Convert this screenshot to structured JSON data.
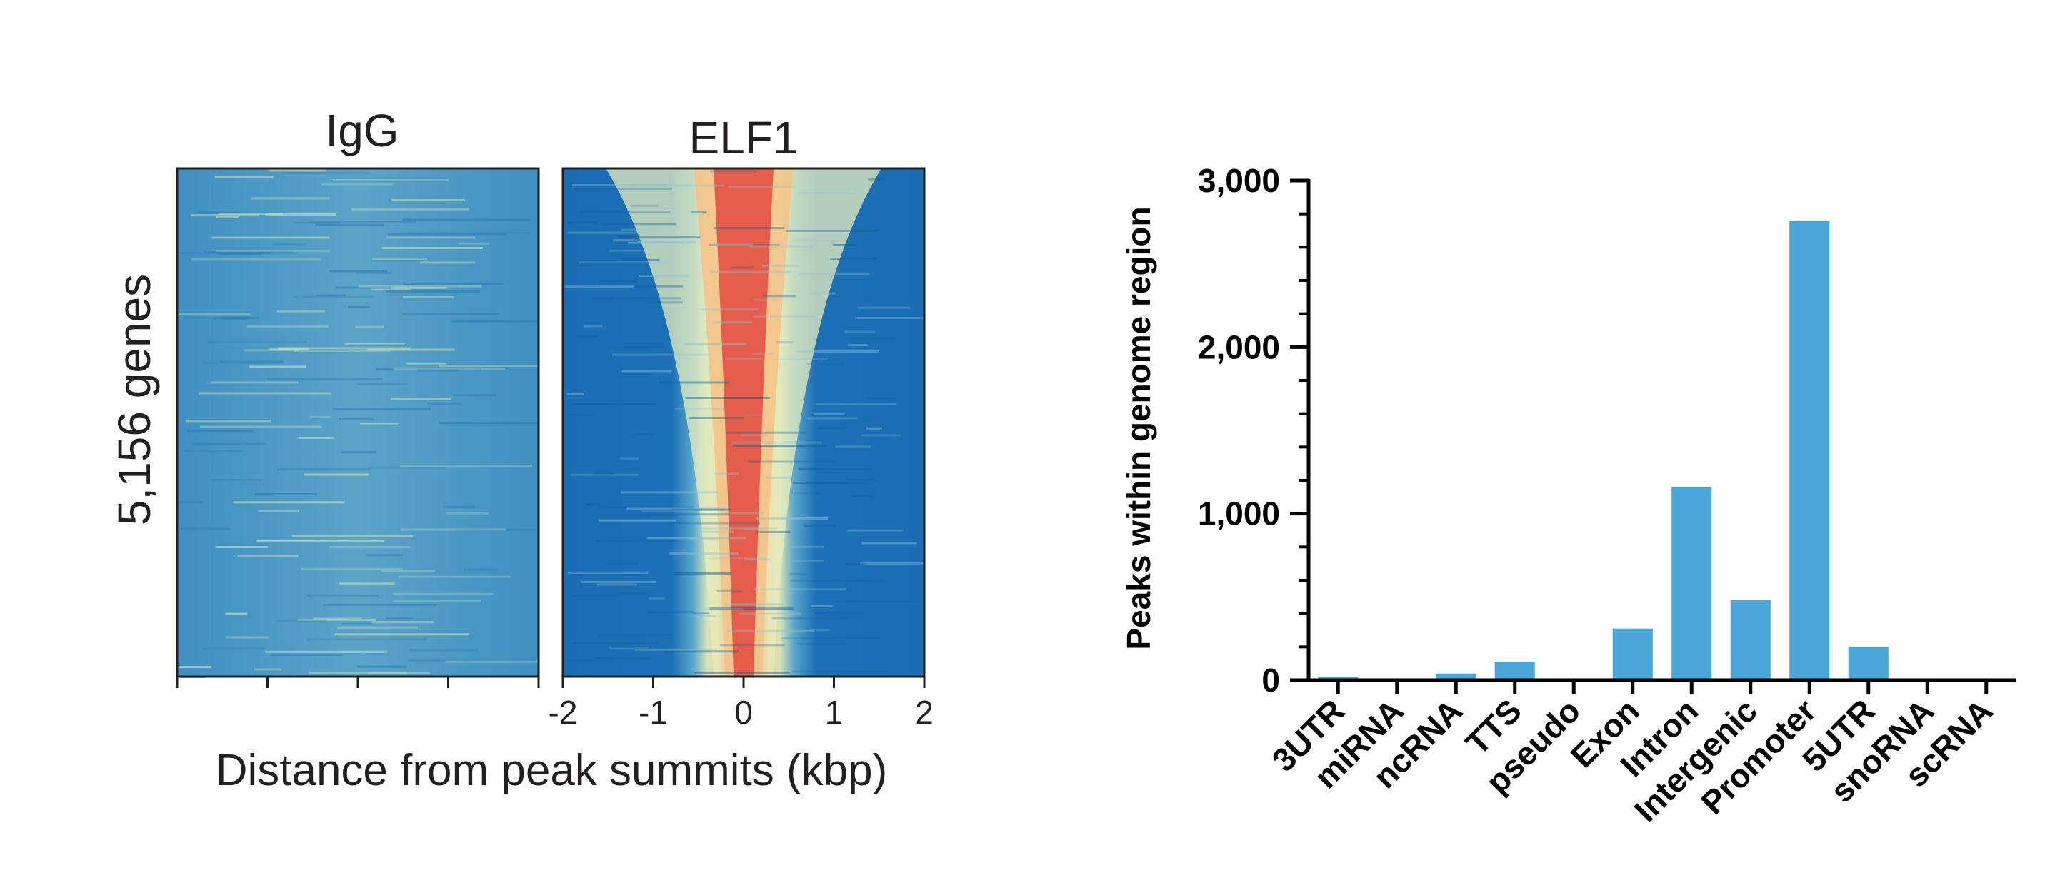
{
  "chart_data": [
    {
      "type": "heatmap",
      "ylabel": "5,156 genes",
      "xlabel": "Distance from peak summits (kbp)",
      "x_ticks": [
        "-2",
        "-1",
        "0",
        "1",
        "2"
      ],
      "xlim": [
        -2,
        2
      ],
      "panels": [
        {
          "title": "IgG",
          "pattern": "uniform",
          "show_tick_labels": false
        },
        {
          "title": "ELF1",
          "pattern": "centered-peak",
          "show_tick_labels": true
        }
      ],
      "colormap": [
        "#1a6fb4",
        "#4f9fc9",
        "#e8eaba",
        "#f3c17d",
        "#e0453b"
      ]
    },
    {
      "type": "bar",
      "ylabel": "Peaks within genome region",
      "categories": [
        "3UTR",
        "miRNA",
        "ncRNA",
        "TTS",
        "pseudo",
        "Exon",
        "Intron",
        "Intergenic",
        "Promoter",
        "5UTR",
        "snoRNA",
        "scRNA"
      ],
      "values": [
        20,
        0,
        40,
        110,
        0,
        310,
        1160,
        480,
        2760,
        200,
        0,
        0
      ],
      "ylim": [
        0,
        3000
      ],
      "y_ticks": [
        "0",
        "1,000",
        "2,000",
        "3,000"
      ],
      "bar_color": "#4aa6d6"
    }
  ]
}
